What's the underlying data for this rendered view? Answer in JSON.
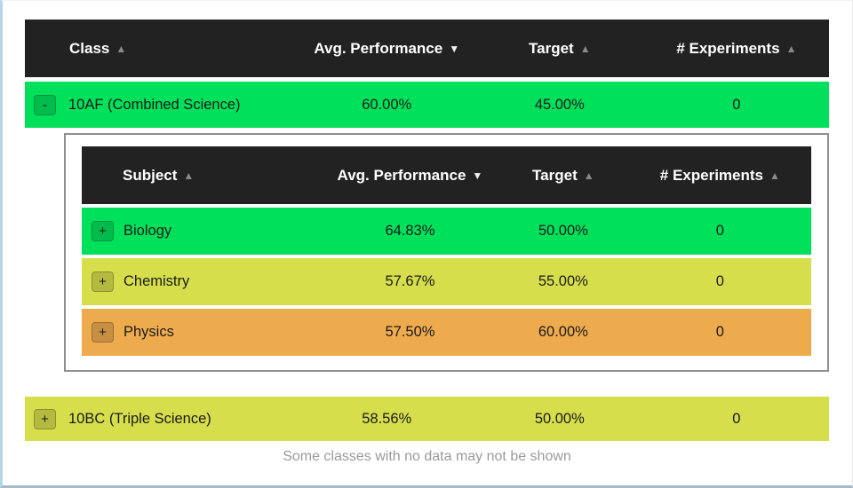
{
  "colors": {
    "header-bg": "#222222",
    "row-green": "#00e05b",
    "row-yellow": "#d7de4c",
    "row-orange": "#eeab4e",
    "panel-border": "#8f8f8f",
    "footer-text": "#9a9a9a",
    "frame-blue": "#b5d7ea",
    "frame-bottom": "#a9bac6"
  },
  "main_table": {
    "headers": [
      {
        "label": "Class",
        "arrow": "▲",
        "sort": "inactive"
      },
      {
        "label": "Avg. Performance",
        "arrow": "▼",
        "sort": "active"
      },
      {
        "label": "Target",
        "arrow": "▲",
        "sort": "inactive"
      },
      {
        "label": "# Experiments",
        "arrow": "▲",
        "sort": "inactive"
      }
    ],
    "rows": [
      {
        "toggle": "-",
        "name": "10AF (Combined Science)",
        "avg_performance": "60.00%",
        "target": "45.00%",
        "experiments": "0",
        "expanded": true
      },
      {
        "toggle": "+",
        "name": "10BC (Triple Science)",
        "avg_performance": "58.56%",
        "target": "50.00%",
        "experiments": "0",
        "expanded": false
      }
    ]
  },
  "subject_table": {
    "headers": [
      {
        "label": "Subject",
        "arrow": "▲",
        "sort": "inactive"
      },
      {
        "label": "Avg. Performance",
        "arrow": "▼",
        "sort": "active"
      },
      {
        "label": "Target",
        "arrow": "▲",
        "sort": "inactive"
      },
      {
        "label": "# Experiments",
        "arrow": "▲",
        "sort": "inactive"
      }
    ],
    "rows": [
      {
        "toggle": "+",
        "name": "Biology",
        "avg_performance": "64.83%",
        "target": "50.00%",
        "experiments": "0"
      },
      {
        "toggle": "+",
        "name": "Chemistry",
        "avg_performance": "57.67%",
        "target": "55.00%",
        "experiments": "0"
      },
      {
        "toggle": "+",
        "name": "Physics",
        "avg_performance": "57.50%",
        "target": "60.00%",
        "experiments": "0"
      }
    ]
  },
  "footer": {
    "note": "Some classes with no data may not be shown"
  }
}
